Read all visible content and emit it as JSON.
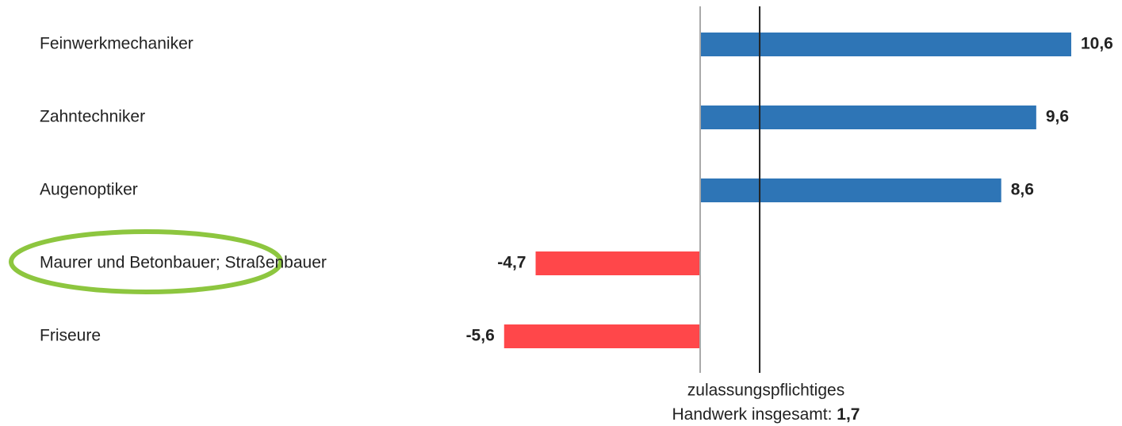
{
  "chart_data": {
    "type": "hbar",
    "categories": [
      "Feinwerkmechaniker",
      "Zahntechniker",
      "Augenoptiker",
      "Maurer und Betonbauer; Straßenbauer",
      "Friseure"
    ],
    "values": [
      10.6,
      9.6,
      8.6,
      -4.7,
      -5.6
    ],
    "value_labels": [
      "10,6",
      "9,6",
      "8,6",
      "-4,7",
      "-5,6"
    ],
    "colors": [
      "#2e75b6",
      "#2e75b6",
      "#2e75b6",
      "#ff474a",
      "#ff474a"
    ],
    "xlim": [
      -10,
      12
    ],
    "reference": {
      "line1": "zulassungspflichtiges",
      "line2": "Handwerk insgesamt: ",
      "value": 1.7,
      "value_label": "1,7"
    }
  }
}
